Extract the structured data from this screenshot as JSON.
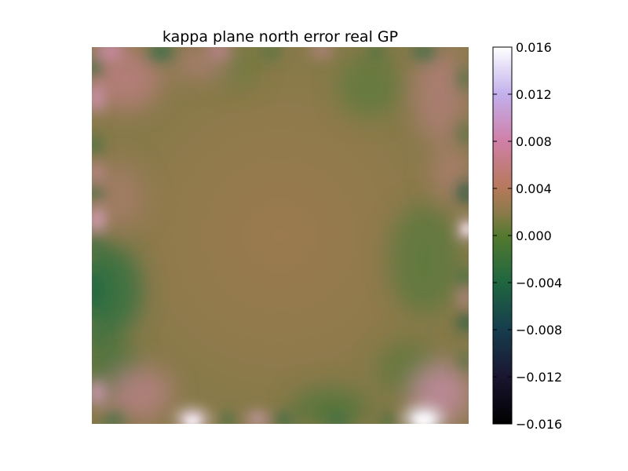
{
  "chart_data": {
    "type": "heatmap",
    "title": "kappa plane north error real GP",
    "xlabel": "",
    "ylabel": "",
    "x_ticks": [],
    "y_ticks": [],
    "grid": false,
    "colormap": "cubehelix",
    "colorbar": {
      "vmin": -0.016,
      "vmax": 0.016,
      "tick_values": [
        0.016,
        0.012,
        0.008,
        0.004,
        0.0,
        -0.004,
        -0.008,
        -0.012,
        -0.016
      ],
      "tick_labels": [
        "0.016",
        "0.012",
        "0.008",
        "0.004",
        "0.000",
        "−0.004",
        "−0.008",
        "−0.012",
        "−0.016"
      ]
    },
    "field_description": "near-zero error in the interior (about 0.000), with positive pink/white spots (up to ~0.008) and negative green patches (down to ~-0.006) concentrated along the square's edges",
    "colors": {
      "background": "#ffffff",
      "axes_edge": "#000000"
    }
  }
}
